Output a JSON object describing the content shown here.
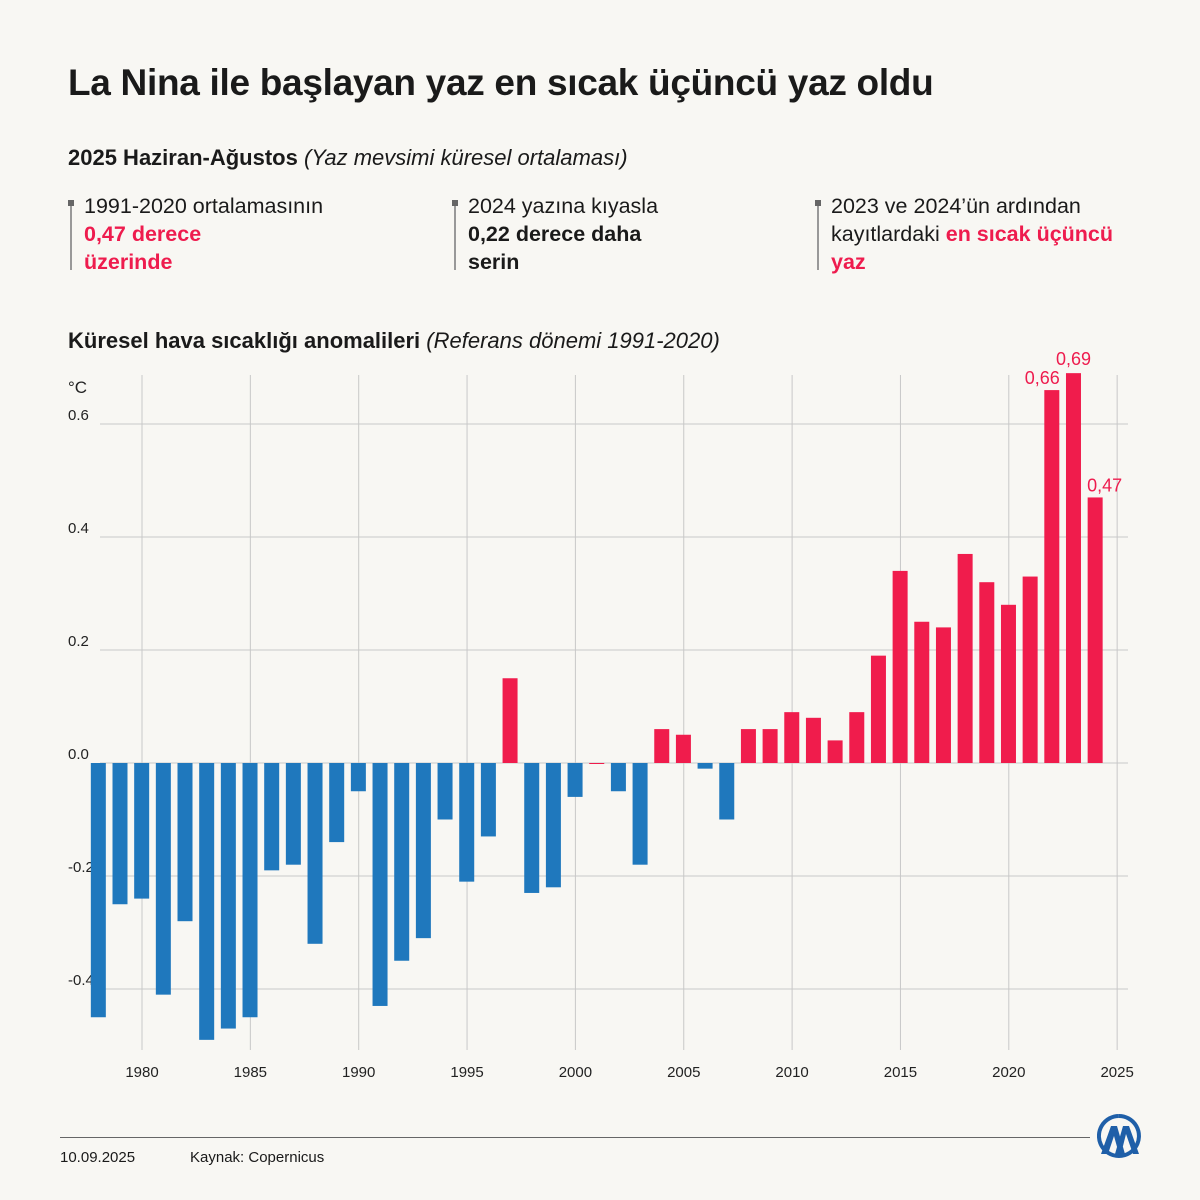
{
  "title": "La Nina ile başlayan yaz en sıcak üçüncü yaz oldu",
  "subtitle": {
    "bold": "2025 Haziran-Ağustos",
    "italic": "(Yaz mevsimi küresel ortalaması)"
  },
  "stats": [
    {
      "line1": "1991-2020 ortalamasının",
      "highlight": "0,47 derece üzerinde"
    },
    {
      "line1": "2024 yazına kıyasla",
      "highlight": "0,22 derece daha serin"
    },
    {
      "line1": "2023 ve 2024’ün ardından kayıtlardaki",
      "highlight": "en sıcak üçüncü yaz"
    }
  ],
  "chart_title": {
    "bold": "Küresel hava sıcaklığı anomalileri",
    "italic": "(Referans dönemi 1991-2020)"
  },
  "footer": {
    "date": "10.09.2025",
    "source": "Kaynak: Copernicus",
    "logo": "AA"
  },
  "colors": {
    "negative": "#1f78bd",
    "positive": "#f01c4c",
    "highlight_text": "#ee1c4e"
  },
  "chart_data": {
    "type": "bar",
    "ylabel": "°C",
    "ylim": [
      -0.5,
      0.69
    ],
    "yticks": [
      "0.6",
      "0.4",
      "0.2",
      "0.0",
      "-0.2",
      "-0.4"
    ],
    "ytick_values": [
      0.6,
      0.4,
      0.2,
      0.0,
      -0.2,
      -0.4
    ],
    "xticks": [
      "1980",
      "1985",
      "1990",
      "1995",
      "2000",
      "2005",
      "2010",
      "2015",
      "2020",
      "2025"
    ],
    "grid": true,
    "x": [
      1979,
      1980,
      1981,
      1982,
      1983,
      1984,
      1985,
      1986,
      1987,
      1988,
      1989,
      1990,
      1991,
      1992,
      1993,
      1994,
      1995,
      1996,
      1997,
      1998,
      1999,
      2000,
      2001,
      2002,
      2003,
      2004,
      2005,
      2006,
      2007,
      2008,
      2009,
      2010,
      2011,
      2012,
      2013,
      2014,
      2015,
      2016,
      2017,
      2018,
      2019,
      2020,
      2021,
      2022,
      2023,
      2024,
      2025
    ],
    "values": [
      -0.45,
      -0.25,
      -0.24,
      -0.41,
      -0.28,
      -0.49,
      -0.47,
      -0.45,
      -0.19,
      -0.18,
      -0.32,
      -0.14,
      -0.05,
      -0.43,
      -0.35,
      -0.31,
      -0.1,
      -0.21,
      -0.13,
      0.15,
      -0.23,
      -0.22,
      -0.06,
      0.0,
      -0.05,
      -0.18,
      0.06,
      0.05,
      -0.01,
      -0.1,
      0.06,
      0.06,
      0.09,
      0.08,
      0.04,
      0.09,
      0.19,
      0.34,
      0.25,
      0.24,
      0.37,
      0.32,
      0.28,
      0.33,
      0.66,
      0.69,
      0.47
    ],
    "data_labels": [
      {
        "x": 2023,
        "text": "0,66"
      },
      {
        "x": 2024,
        "text": "0,69"
      },
      {
        "x": 2025,
        "text": "0,47"
      }
    ]
  }
}
